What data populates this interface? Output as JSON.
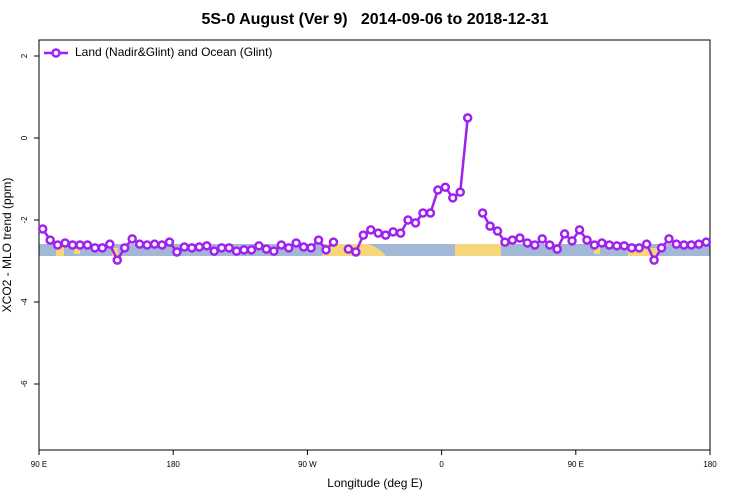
{
  "chart_data": {
    "type": "line",
    "title": "5S-0 August (Ver 9)   2014-09-06 to 2018-12-31",
    "x_label": "Longitude (deg E)",
    "y_label": "XCO2 - MLO trend (ppm)",
    "x": [
      92.5,
      97.5,
      102.5,
      107.5,
      112.5,
      117.5,
      122.5,
      127.5,
      132.5,
      137.5,
      142.5,
      147.5,
      152.5,
      157.5,
      162.5,
      167.5,
      172.5,
      177.5,
      182.5,
      187.5,
      192.5,
      197.5,
      202.5,
      207.5,
      212.5,
      217.5,
      222.5,
      227.5,
      232.5,
      237.5,
      242.5,
      247.5,
      252.5,
      257.5,
      262.5,
      267.5,
      272.5,
      277.5,
      282.5,
      287.5,
      292.5,
      297.5,
      302.5,
      307.5,
      312.5,
      317.5,
      322.5,
      327.5,
      332.5,
      337.5,
      342.5,
      347.5,
      352.5,
      357.5,
      362.5,
      367.5,
      372.5,
      377.5,
      382.5,
      387.5,
      392.5,
      397.5,
      402.5,
      407.5,
      412.5,
      417.5,
      422.5,
      427.5,
      432.5,
      437.5,
      442.5,
      447.5,
      452.5,
      457.5,
      462.5,
      467.5,
      472.5,
      477.5,
      482.5,
      487.5,
      492.5,
      497.5,
      502.5,
      507.5,
      512.5,
      517.5,
      522.5,
      527.5,
      532.5,
      537.5
    ],
    "series": [
      {
        "name": "Land (Nadir&Glint) and Ocean (Glint)",
        "color": "#a020f0",
        "values": [
          -2.22,
          -2.49,
          -2.61,
          -2.56,
          -2.61,
          -2.61,
          -2.61,
          -2.68,
          -2.68,
          -2.59,
          -2.98,
          -2.68,
          -2.46,
          -2.59,
          -2.61,
          -2.59,
          -2.61,
          -2.54,
          -2.78,
          -2.66,
          -2.68,
          -2.66,
          -2.63,
          -2.76,
          -2.68,
          -2.68,
          -2.76,
          -2.73,
          -2.73,
          -2.63,
          -2.71,
          -2.76,
          -2.61,
          -2.68,
          -2.56,
          -2.66,
          -2.68,
          -2.49,
          -2.73,
          -2.54,
          null,
          -2.71,
          -2.78,
          -2.37,
          -2.24,
          -2.32,
          -2.37,
          -2.29,
          -2.32,
          -2.0,
          -2.07,
          -1.83,
          -1.83,
          -1.27,
          -1.2,
          -1.46,
          -1.32,
          0.49,
          null,
          -1.83,
          -2.15,
          -2.27,
          -2.54,
          -2.49,
          -2.44,
          -2.56,
          -2.61,
          -2.46,
          -2.61,
          -2.71,
          -2.34,
          -2.51,
          -2.24,
          -2.49,
          -2.61,
          -2.56,
          -2.61,
          -2.63,
          -2.63,
          -2.68,
          -2.68,
          -2.59,
          -2.98,
          -2.68,
          -2.46,
          -2.59,
          -2.61,
          -2.61,
          -2.59,
          -2.54
        ]
      }
    ],
    "xlim": [
      90,
      540
    ],
    "xticks": [
      {
        "value": 90,
        "label": "90 E"
      },
      180,
      {
        "value": 270,
        "label": "90 W"
      },
      {
        "value": 360,
        "label": "0"
      },
      {
        "value": 450,
        "label": "90 E"
      },
      {
        "value": 540,
        "label": "180"
      }
    ],
    "ylim": [
      -7.61,
      2.39
    ],
    "yticks": [
      2,
      0,
      -2,
      -4,
      -6
    ],
    "legend": "top-left"
  }
}
